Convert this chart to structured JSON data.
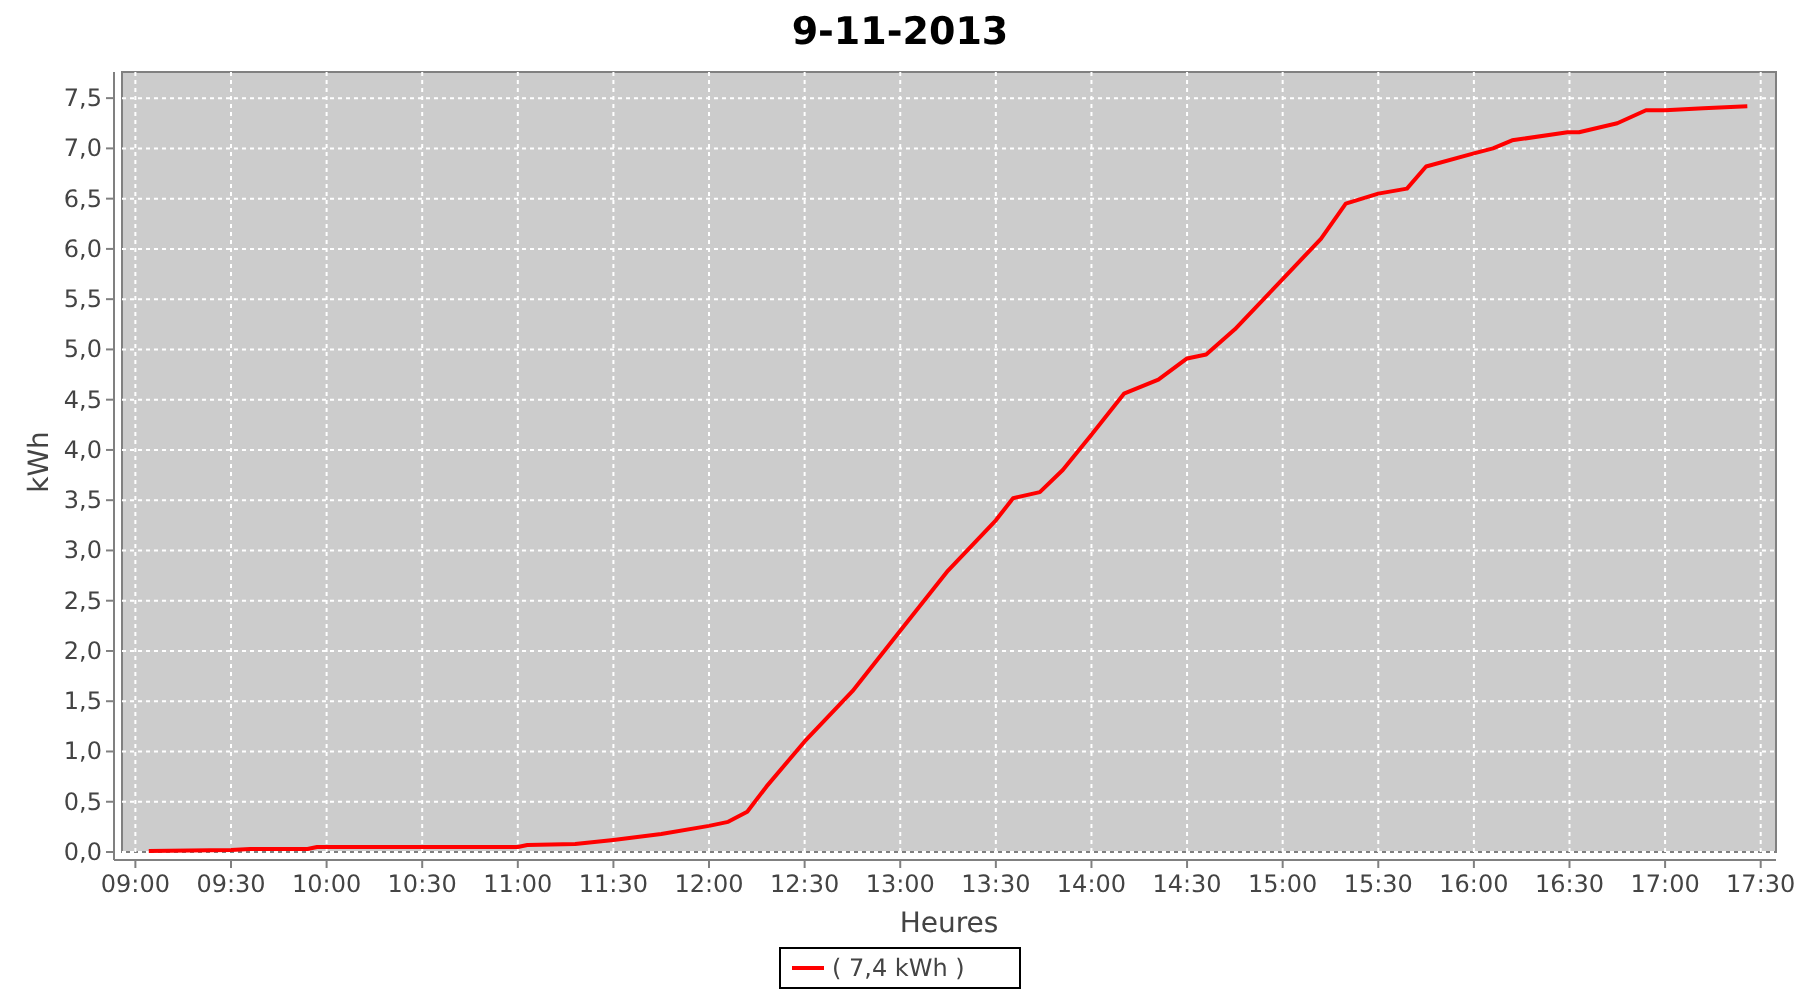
{
  "chart_data": {
    "type": "line",
    "title": "9-11-2013",
    "xlabel": "Heures",
    "ylabel": "kWh",
    "xlim": [
      8.93,
      17.58
    ],
    "ylim": [
      0,
      7.76
    ],
    "xticks": [
      {
        "value": 9,
        "label": "09:00"
      },
      {
        "value": 9.5,
        "label": "09:30"
      },
      {
        "value": 10,
        "label": "10:00"
      },
      {
        "value": 10.5,
        "label": "10:30"
      },
      {
        "value": 11,
        "label": "11:00"
      },
      {
        "value": 11.5,
        "label": "11:30"
      },
      {
        "value": 12,
        "label": "12:00"
      },
      {
        "value": 12.5,
        "label": "12:30"
      },
      {
        "value": 13,
        "label": "13:00"
      },
      {
        "value": 13.5,
        "label": "13:30"
      },
      {
        "value": 14,
        "label": "14:00"
      },
      {
        "value": 14.5,
        "label": "14:30"
      },
      {
        "value": 15,
        "label": "15:00"
      },
      {
        "value": 15.5,
        "label": "15:30"
      },
      {
        "value": 16,
        "label": "16:00"
      },
      {
        "value": 16.5,
        "label": "16:30"
      },
      {
        "value": 17,
        "label": "17:00"
      },
      {
        "value": 17.5,
        "label": "17:30"
      }
    ],
    "yticks": [
      {
        "value": 0,
        "label": "0,0"
      },
      {
        "value": 0.5,
        "label": "0,5"
      },
      {
        "value": 1,
        "label": "1,0"
      },
      {
        "value": 1.5,
        "label": "1,5"
      },
      {
        "value": 2,
        "label": "2,0"
      },
      {
        "value": 2.5,
        "label": "2,5"
      },
      {
        "value": 3,
        "label": "3,0"
      },
      {
        "value": 3.5,
        "label": "3,5"
      },
      {
        "value": 4,
        "label": "4,0"
      },
      {
        "value": 4.5,
        "label": "4,5"
      },
      {
        "value": 5,
        "label": "5,0"
      },
      {
        "value": 5.5,
        "label": "5,5"
      },
      {
        "value": 6,
        "label": "6,0"
      },
      {
        "value": 6.5,
        "label": "6,5"
      },
      {
        "value": 7,
        "label": "7,0"
      },
      {
        "value": 7.5,
        "label": "7,5"
      }
    ],
    "grid": true,
    "legend": "bottom",
    "line_style": "solid",
    "x": [
      9.07,
      9.5,
      9.6,
      9.9,
      9.95,
      11.0,
      11.05,
      11.3,
      11.5,
      11.75,
      12.0,
      12.1,
      12.2,
      12.3,
      12.5,
      12.75,
      13.0,
      13.25,
      13.5,
      13.59,
      13.73,
      13.85,
      14.0,
      14.17,
      14.35,
      14.5,
      14.6,
      14.75,
      15.0,
      15.2,
      15.33,
      15.5,
      15.65,
      15.75,
      16.0,
      16.1,
      16.2,
      16.49,
      16.55,
      16.75,
      16.9,
      17.0,
      17.2,
      17.43
    ],
    "series": [
      {
        "name": "( 7,4 kWh )",
        "color": "#ff0000",
        "values": [
          0.01,
          0.02,
          0.03,
          0.03,
          0.05,
          0.05,
          0.07,
          0.08,
          0.12,
          0.18,
          0.26,
          0.3,
          0.4,
          0.65,
          1.1,
          1.6,
          2.2,
          2.8,
          3.3,
          3.52,
          3.58,
          3.8,
          4.15,
          4.56,
          4.7,
          4.91,
          4.95,
          5.2,
          5.7,
          6.1,
          6.45,
          6.55,
          6.6,
          6.82,
          6.95,
          7.0,
          7.08,
          7.16,
          7.16,
          7.25,
          7.38,
          7.38,
          7.4,
          7.42
        ]
      }
    ]
  }
}
